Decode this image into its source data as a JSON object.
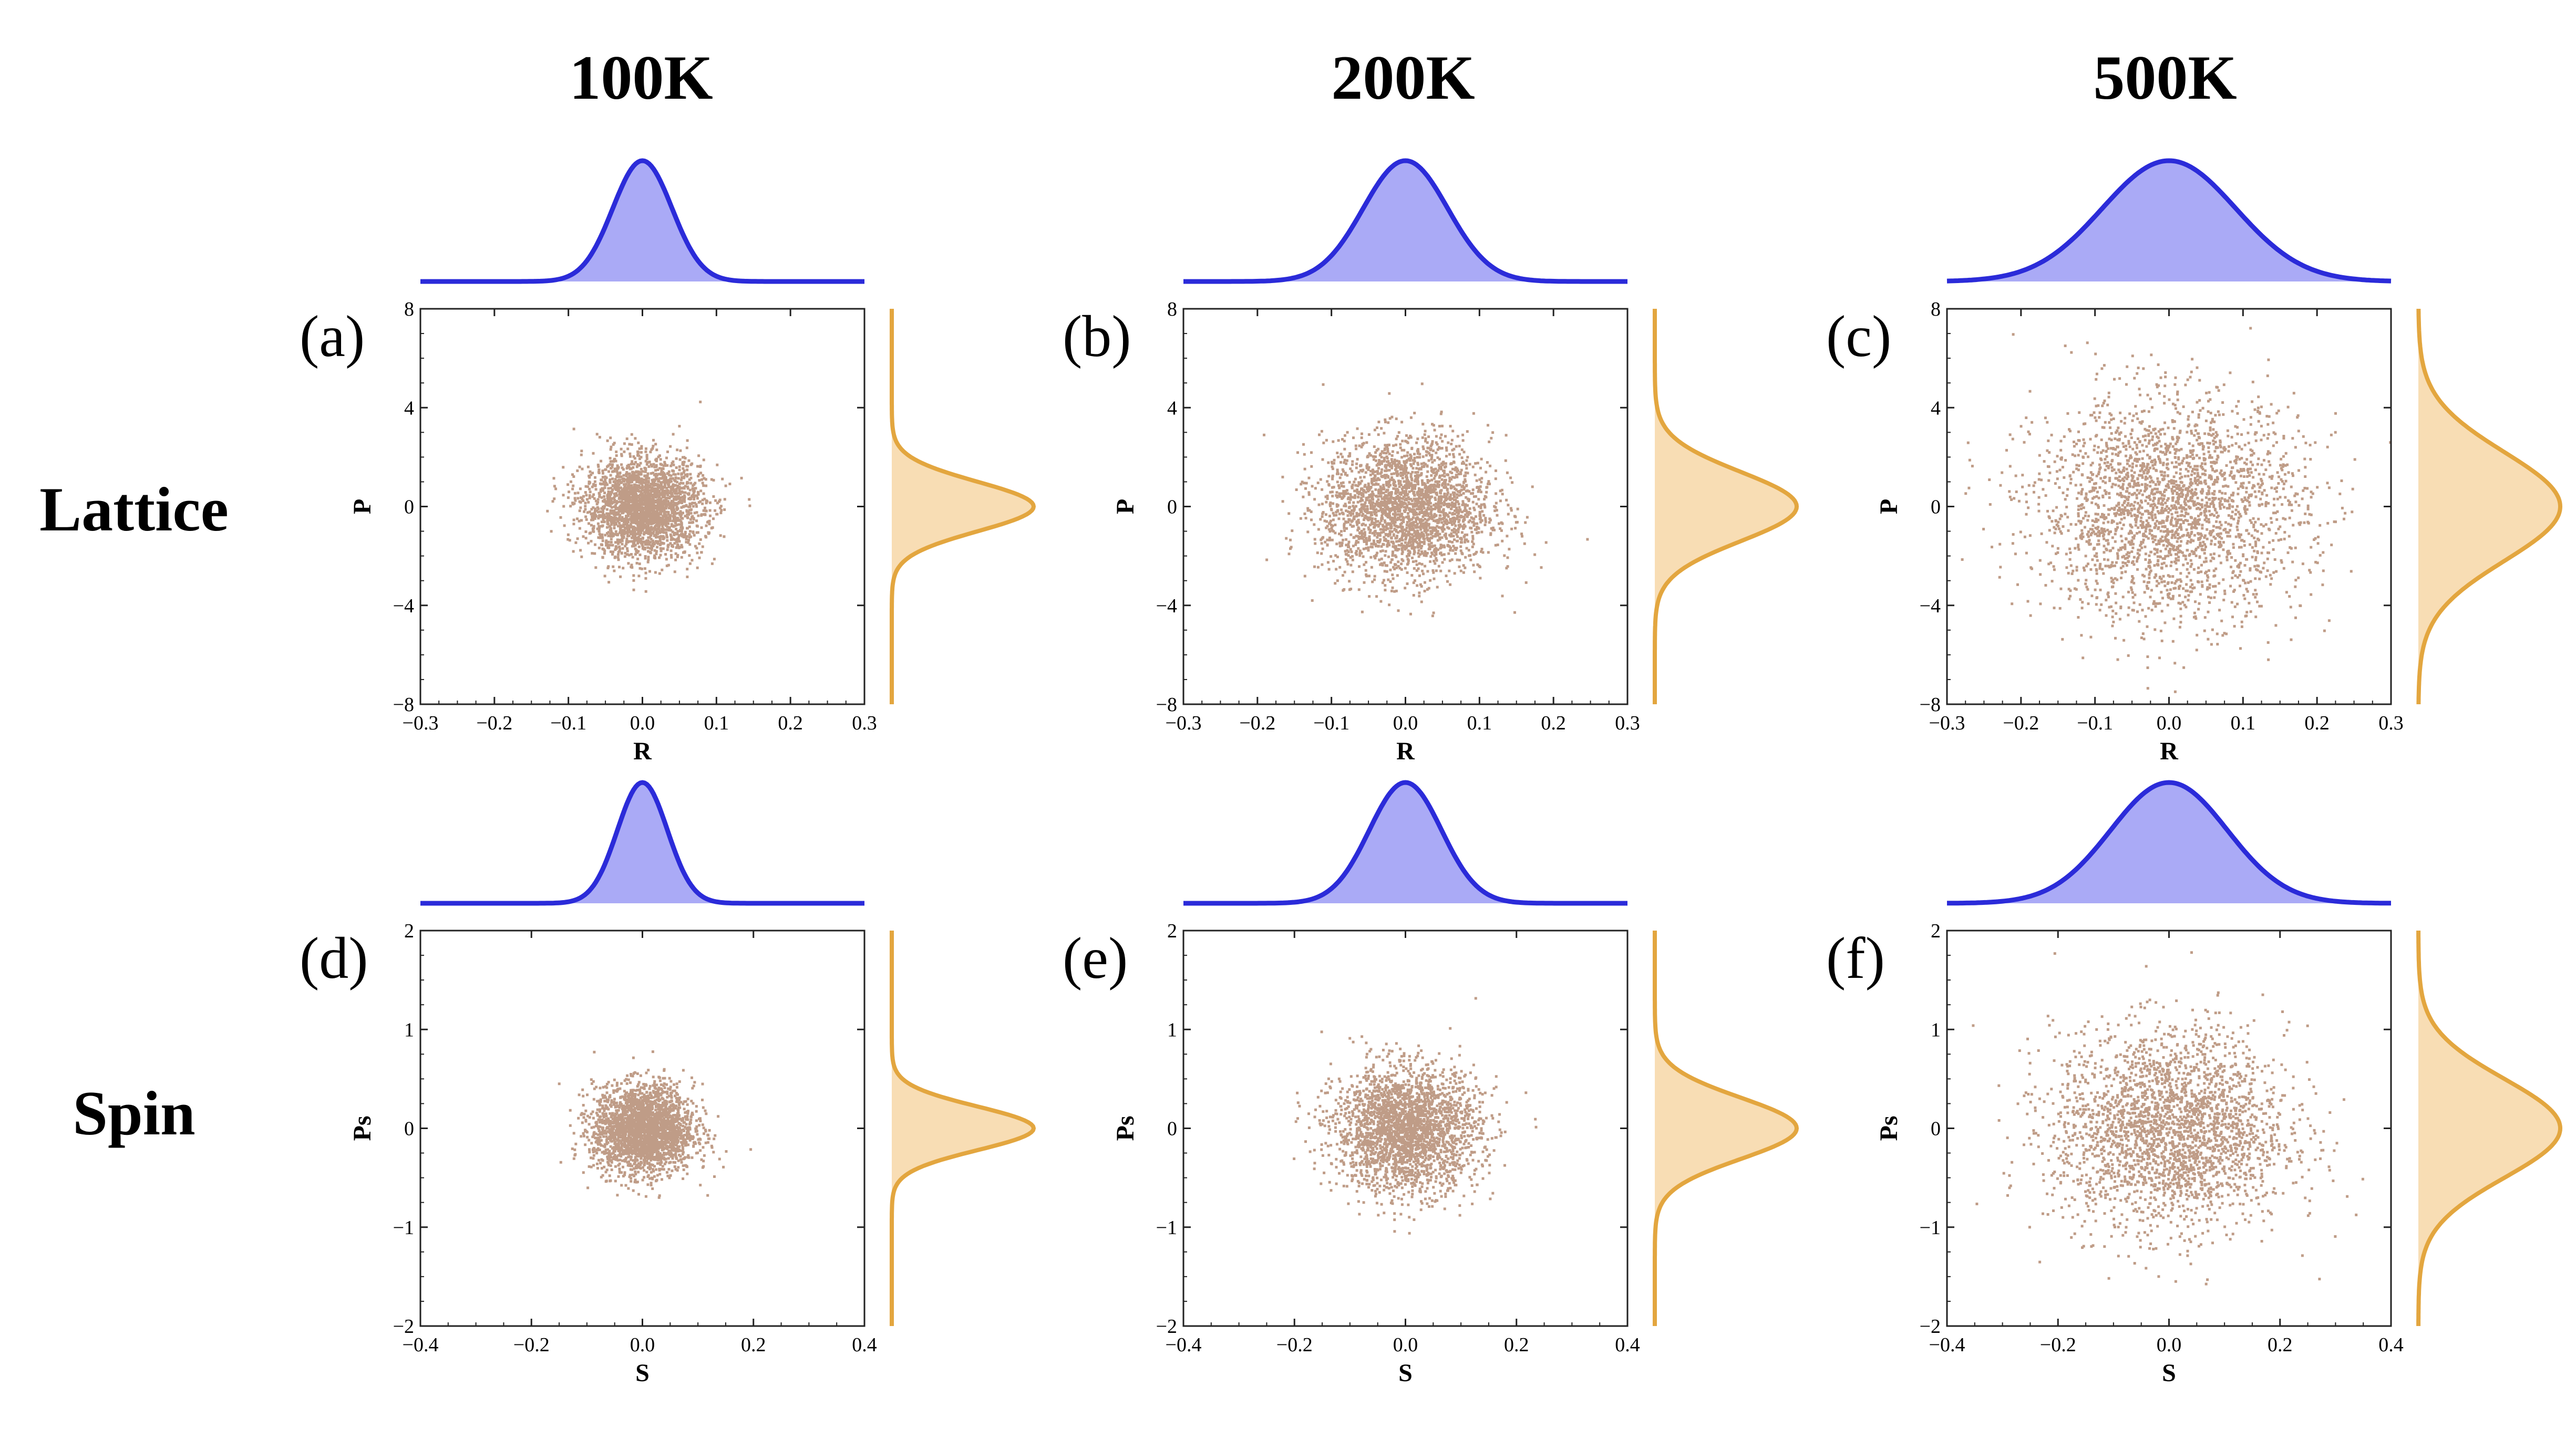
{
  "column_titles": [
    "100K",
    "200K",
    "500K"
  ],
  "row_titles": [
    "Lattice",
    "Spin"
  ],
  "colors": {
    "scatter": "#8b4a25",
    "top_kde_line": "#2b2bd9",
    "top_kde_fill": "#aaaaf6",
    "right_kde_line": "#e3a63f",
    "right_kde_fill": "#f8ddb4",
    "frame": "#222222"
  },
  "chart_data": [
    {
      "type": "scatter",
      "panel_label": "(a)",
      "row": "Lattice",
      "column_title": "100K",
      "xlabel": "R",
      "ylabel": "P",
      "xlim": [
        -0.3,
        0.3
      ],
      "ylim": [
        -8,
        8
      ],
      "xticks": [
        -0.3,
        -0.2,
        -0.1,
        0.0,
        0.1,
        0.2,
        0.3
      ],
      "xtick_labels": [
        "−0.3",
        "−0.2",
        "−0.1",
        "0.0",
        "0.1",
        "0.2",
        "0.3"
      ],
      "yticks": [
        -8,
        -4,
        0,
        4,
        8
      ],
      "ytick_labels": [
        "−8",
        "−4",
        "0",
        "4",
        "8"
      ],
      "x_distribution": {
        "mean": 0.0,
        "std": 0.04
      },
      "y_distribution": {
        "mean": 0.0,
        "std": 1.0
      },
      "marginal_top": "Gaussian KDE of R",
      "marginal_right": "Gaussian KDE of P"
    },
    {
      "type": "scatter",
      "panel_label": "(b)",
      "row": "Lattice",
      "column_title": "200K",
      "xlabel": "R",
      "ylabel": "P",
      "xlim": [
        -0.3,
        0.3
      ],
      "ylim": [
        -8,
        8
      ],
      "xticks": [
        -0.3,
        -0.2,
        -0.1,
        0.0,
        0.1,
        0.2,
        0.3
      ],
      "xtick_labels": [
        "−0.3",
        "−0.2",
        "−0.1",
        "0.0",
        "0.1",
        "0.2",
        "0.3"
      ],
      "yticks": [
        -8,
        -4,
        0,
        4,
        8
      ],
      "ytick_labels": [
        "−8",
        "−4",
        "0",
        "4",
        "8"
      ],
      "x_distribution": {
        "mean": 0.0,
        "std": 0.057
      },
      "y_distribution": {
        "mean": 0.0,
        "std": 1.4
      },
      "marginal_top": "Gaussian KDE of R",
      "marginal_right": "Gaussian KDE of P"
    },
    {
      "type": "scatter",
      "panel_label": "(c)",
      "row": "Lattice",
      "column_title": "500K",
      "xlabel": "R",
      "ylabel": "P",
      "xlim": [
        -0.3,
        0.3
      ],
      "ylim": [
        -8,
        8
      ],
      "xticks": [
        -0.3,
        -0.2,
        -0.1,
        0.0,
        0.1,
        0.2,
        0.3
      ],
      "xtick_labels": [
        "−0.3",
        "−0.2",
        "−0.1",
        "0.0",
        "0.1",
        "0.2",
        "0.3"
      ],
      "yticks": [
        -8,
        -4,
        0,
        4,
        8
      ],
      "ytick_labels": [
        "−8",
        "−4",
        "0",
        "4",
        "8"
      ],
      "x_distribution": {
        "mean": 0.0,
        "std": 0.09
      },
      "y_distribution": {
        "mean": 0.0,
        "std": 2.2
      },
      "marginal_top": "Gaussian KDE of R",
      "marginal_right": "Gaussian KDE of P"
    },
    {
      "type": "scatter",
      "panel_label": "(d)",
      "row": "Spin",
      "column_title": "100K",
      "xlabel": "S",
      "ylabel": "Ps",
      "xlim": [
        -0.4,
        0.4
      ],
      "ylim": [
        -2,
        2
      ],
      "xticks": [
        -0.4,
        -0.2,
        0.0,
        0.2,
        0.4
      ],
      "xtick_labels": [
        "−0.4",
        "−0.2",
        "0.0",
        "0.2",
        "0.4"
      ],
      "yticks": [
        -2,
        -1,
        0,
        1,
        2
      ],
      "ytick_labels": [
        "−2",
        "−1",
        "0",
        "1",
        "2"
      ],
      "x_distribution": {
        "mean": 0.0,
        "std": 0.045
      },
      "y_distribution": {
        "mean": 0.0,
        "std": 0.22
      },
      "marginal_top": "Gaussian KDE of S",
      "marginal_right": "Gaussian KDE of Ps"
    },
    {
      "type": "scatter",
      "panel_label": "(e)",
      "row": "Spin",
      "column_title": "200K",
      "xlabel": "S",
      "ylabel": "Ps",
      "xlim": [
        -0.4,
        0.4
      ],
      "ylim": [
        -2,
        2
      ],
      "xticks": [
        -0.4,
        -0.2,
        0.0,
        0.2,
        0.4
      ],
      "xtick_labels": [
        "−0.4",
        "−0.2",
        "0.0",
        "0.2",
        "0.4"
      ],
      "yticks": [
        -2,
        -1,
        0,
        1,
        2
      ],
      "ytick_labels": [
        "−2",
        "−1",
        "0",
        "1",
        "2"
      ],
      "x_distribution": {
        "mean": 0.0,
        "std": 0.065
      },
      "y_distribution": {
        "mean": 0.0,
        "std": 0.31
      },
      "marginal_top": "Gaussian KDE of S",
      "marginal_right": "Gaussian KDE of Ps"
    },
    {
      "type": "scatter",
      "panel_label": "(f)",
      "row": "Spin",
      "column_title": "500K",
      "xlabel": "S",
      "ylabel": "Ps",
      "xlim": [
        -0.4,
        0.4
      ],
      "ylim": [
        -2,
        2
      ],
      "xticks": [
        -0.4,
        -0.2,
        0.0,
        0.2,
        0.4
      ],
      "xtick_labels": [
        "−0.4",
        "−0.2",
        "0.0",
        "0.2",
        "0.4"
      ],
      "yticks": [
        -2,
        -1,
        0,
        1,
        2
      ],
      "ytick_labels": [
        "−2",
        "−1",
        "0",
        "1",
        "2"
      ],
      "x_distribution": {
        "mean": 0.0,
        "std": 0.105
      },
      "y_distribution": {
        "mean": 0.0,
        "std": 0.5
      },
      "marginal_top": "Gaussian KDE of S",
      "marginal_right": "Gaussian KDE of Ps"
    }
  ]
}
